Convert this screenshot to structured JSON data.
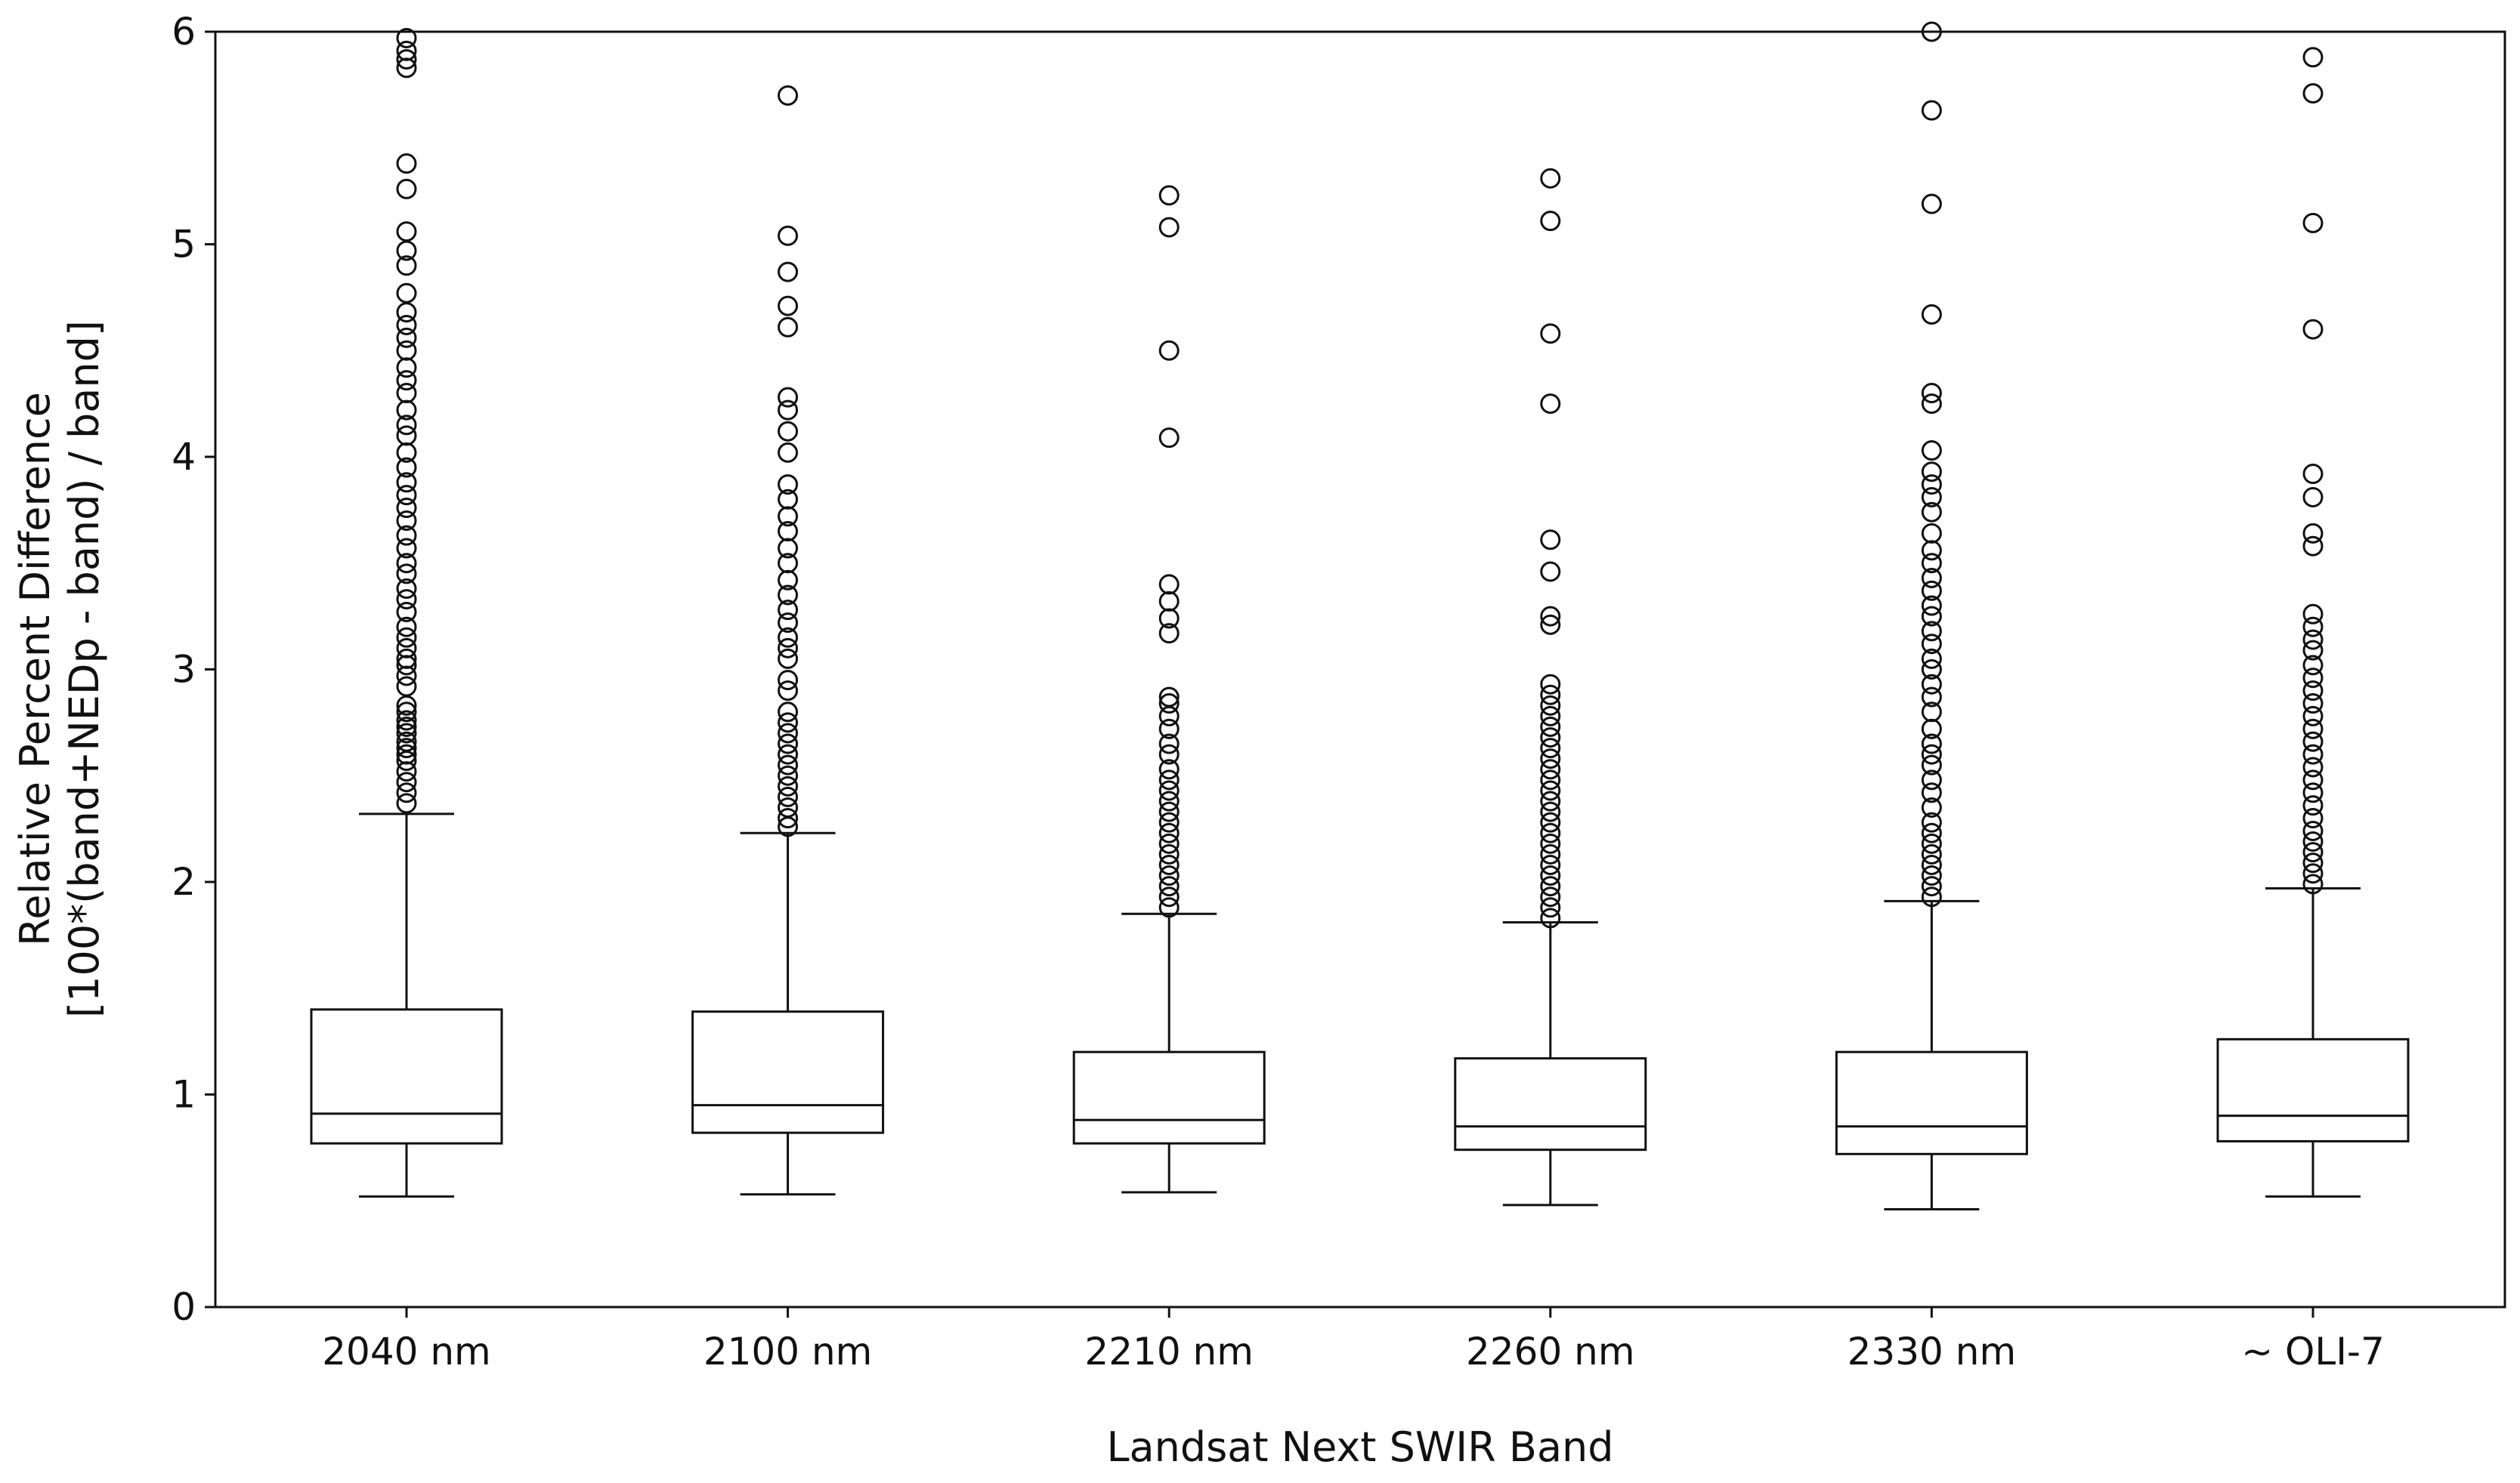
{
  "chart_data": {
    "type": "boxplot",
    "xlabel": "Landsat Next SWIR Band",
    "ylabel_lines": [
      "Relative Percent Difference",
      "[100*(band+NEDp - band) / band]"
    ],
    "ylim": [
      0,
      6
    ],
    "yticks": [
      "0",
      "1",
      "2",
      "3",
      "4",
      "5",
      "6"
    ],
    "grid": false,
    "legend": "none",
    "categories": [
      "2040 nm",
      "2100 nm",
      "2210 nm",
      "2260 nm",
      "2330 nm",
      "~ OLI-7"
    ],
    "boxes": [
      {
        "label": "2040 nm",
        "whisker_low": 0.52,
        "q1": 0.77,
        "median": 0.91,
        "q3": 1.4,
        "whisker_high": 2.32,
        "outliers": [
          2.37,
          2.42,
          2.47,
          2.52,
          2.57,
          2.6,
          2.63,
          2.66,
          2.7,
          2.73,
          2.76,
          2.8,
          2.83,
          2.92,
          2.97,
          3.02,
          3.05,
          3.1,
          3.15,
          3.2,
          3.27,
          3.33,
          3.38,
          3.45,
          3.5,
          3.57,
          3.63,
          3.7,
          3.76,
          3.82,
          3.88,
          3.95,
          4.02,
          4.1,
          4.15,
          4.22,
          4.3,
          4.36,
          4.42,
          4.5,
          4.56,
          4.62,
          4.68,
          4.77,
          4.9,
          4.97,
          5.06,
          5.26,
          5.38,
          5.83,
          5.87,
          5.91,
          5.97
        ]
      },
      {
        "label": "2100 nm",
        "whisker_low": 0.53,
        "q1": 0.82,
        "median": 0.95,
        "q3": 1.39,
        "whisker_high": 2.23,
        "outliers": [
          2.26,
          2.3,
          2.35,
          2.4,
          2.45,
          2.5,
          2.55,
          2.6,
          2.65,
          2.7,
          2.75,
          2.8,
          2.9,
          2.95,
          3.05,
          3.1,
          3.15,
          3.22,
          3.28,
          3.35,
          3.42,
          3.5,
          3.57,
          3.65,
          3.72,
          3.8,
          3.87,
          4.02,
          4.12,
          4.22,
          4.28,
          4.61,
          4.71,
          4.87,
          5.04,
          5.7
        ]
      },
      {
        "label": "2210 nm",
        "whisker_low": 0.54,
        "q1": 0.77,
        "median": 0.88,
        "q3": 1.2,
        "whisker_high": 1.85,
        "outliers": [
          1.88,
          1.93,
          1.98,
          2.03,
          2.08,
          2.13,
          2.18,
          2.23,
          2.28,
          2.33,
          2.38,
          2.43,
          2.48,
          2.53,
          2.6,
          2.65,
          2.72,
          2.78,
          2.84,
          2.87,
          3.17,
          3.24,
          3.32,
          3.4,
          4.09,
          4.5,
          5.08,
          5.23
        ]
      },
      {
        "label": "2260 nm",
        "whisker_low": 0.48,
        "q1": 0.74,
        "median": 0.85,
        "q3": 1.17,
        "whisker_high": 1.81,
        "outliers": [
          1.83,
          1.88,
          1.93,
          1.98,
          2.03,
          2.08,
          2.13,
          2.18,
          2.23,
          2.28,
          2.33,
          2.38,
          2.43,
          2.48,
          2.53,
          2.58,
          2.63,
          2.68,
          2.73,
          2.78,
          2.83,
          2.88,
          2.93,
          3.21,
          3.25,
          3.46,
          3.61,
          4.25,
          4.58,
          5.11,
          5.31
        ]
      },
      {
        "label": "2330 nm",
        "whisker_low": 0.46,
        "q1": 0.72,
        "median": 0.85,
        "q3": 1.2,
        "whisker_high": 1.91,
        "outliers": [
          1.93,
          1.98,
          2.03,
          2.08,
          2.13,
          2.18,
          2.23,
          2.28,
          2.35,
          2.42,
          2.48,
          2.55,
          2.6,
          2.65,
          2.72,
          2.8,
          2.87,
          2.93,
          3.0,
          3.05,
          3.12,
          3.18,
          3.25,
          3.3,
          3.37,
          3.43,
          3.5,
          3.56,
          3.64,
          3.74,
          3.81,
          3.87,
          3.93,
          4.03,
          4.25,
          4.3,
          4.67,
          5.19,
          5.63,
          6.0
        ]
      },
      {
        "label": "~ OLI-7",
        "whisker_low": 0.52,
        "q1": 0.78,
        "median": 0.9,
        "q3": 1.26,
        "whisker_high": 1.97,
        "outliers": [
          1.99,
          2.04,
          2.09,
          2.14,
          2.19,
          2.24,
          2.3,
          2.36,
          2.42,
          2.48,
          2.54,
          2.6,
          2.66,
          2.72,
          2.78,
          2.84,
          2.9,
          2.96,
          3.02,
          3.09,
          3.14,
          3.2,
          3.26,
          3.58,
          3.64,
          3.81,
          3.92,
          4.6,
          5.1,
          5.71,
          5.88
        ]
      }
    ]
  }
}
